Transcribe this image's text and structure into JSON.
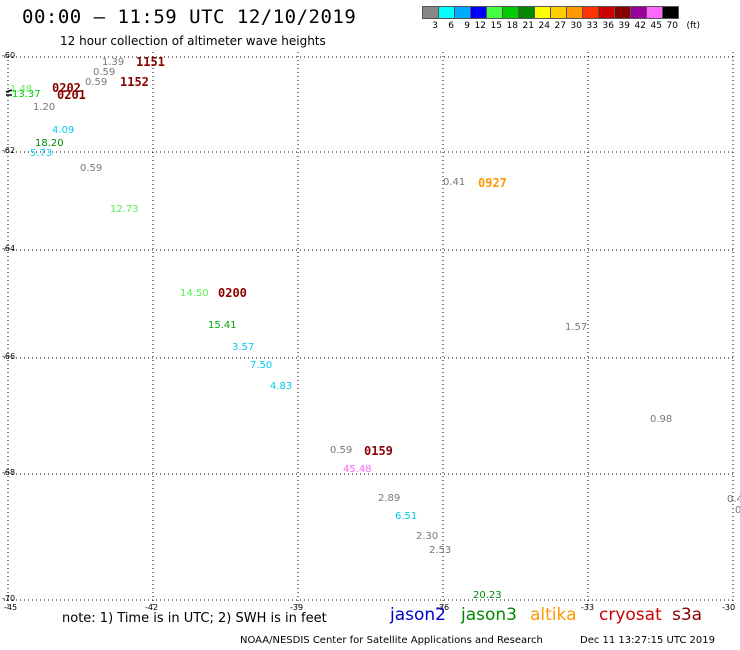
{
  "header": {
    "title": "00:00 – 11:59 UTC 12/10/2019",
    "subtitle": "12 hour collection of altimeter wave heights"
  },
  "color_scale": {
    "labels": [
      "3",
      "6",
      "9",
      "12",
      "15",
      "18",
      "21",
      "24",
      "27",
      "30",
      "33",
      "36",
      "39",
      "42",
      "45",
      "70"
    ],
    "unit": "(ft)",
    "colors": [
      "#888888",
      "#00ffff",
      "#00aaff",
      "#0000ff",
      "#44ff44",
      "#00cc00",
      "#008800",
      "#ffff00",
      "#ffcc00",
      "#ff9900",
      "#ff3300",
      "#cc0000",
      "#880000",
      "#990099",
      "#ff66ff",
      "#000000"
    ]
  },
  "map": {
    "x_ticks": [
      "-45",
      "-42",
      "-39",
      "-36",
      "-33",
      "-30"
    ],
    "y_ticks": [
      "-60",
      "-62",
      "-64",
      "-66",
      "-68",
      "-70"
    ],
    "wave_heights": [
      {
        "text": "1.39",
        "color": "#777777"
      },
      {
        "text": "0.59",
        "color": "#777777"
      },
      {
        "text": "0.59",
        "color": "#777777"
      },
      {
        "text": "1.48",
        "color": "#66ee66"
      },
      {
        "text": "13.37",
        "color": "#00cc00"
      },
      {
        "text": "1.20",
        "color": "#777777"
      },
      {
        "text": "4.09",
        "color": "#00ccee"
      },
      {
        "text": "18.20",
        "color": "#008800"
      },
      {
        "text": "5.73",
        "color": "#00ccee"
      },
      {
        "text": "0.59",
        "color": "#777777"
      },
      {
        "text": "12.73",
        "color": "#55ee55"
      },
      {
        "text": "14.50",
        "color": "#55ee55"
      },
      {
        "text": "15.41",
        "color": "#00aa00"
      },
      {
        "text": "3.57",
        "color": "#00ccee"
      },
      {
        "text": "7.50",
        "color": "#00ccee"
      },
      {
        "text": "4.83",
        "color": "#00ccee"
      },
      {
        "text": "0.41",
        "color": "#777777"
      },
      {
        "text": "1.57",
        "color": "#777777"
      },
      {
        "text": "0.98",
        "color": "#777777"
      },
      {
        "text": "0.59",
        "color": "#777777"
      },
      {
        "text": "45.48",
        "color": "#ff66ff"
      },
      {
        "text": "2.89",
        "color": "#777777"
      },
      {
        "text": "6.51",
        "color": "#00ccee"
      },
      {
        "text": "2.30",
        "color": "#777777"
      },
      {
        "text": "2.53",
        "color": "#777777"
      },
      {
        "text": "20.23",
        "color": "#008800"
      },
      {
        "text": "0.4",
        "color": "#777777"
      },
      {
        "text": "0",
        "color": "#777777"
      }
    ],
    "pass_times": [
      {
        "text": "1151",
        "color": "#880000"
      },
      {
        "text": "1152",
        "color": "#880000"
      },
      {
        "text": "0202",
        "color": "#880000"
      },
      {
        "text": "0201",
        "color": "#880000"
      },
      {
        "text": "0927",
        "color": "#ff9900"
      },
      {
        "text": "0200",
        "color": "#880000"
      },
      {
        "text": "0159",
        "color": "#880000"
      }
    ]
  },
  "legend": {
    "note": "note: 1) Time is in UTC; 2) SWH is in feet",
    "satellites": [
      {
        "name": "jason2",
        "color": "#0000cc"
      },
      {
        "name": "jason3",
        "color": "#008800"
      },
      {
        "name": "altika",
        "color": "#ff9900"
      },
      {
        "name": "cryosat",
        "color": "#cc0000"
      },
      {
        "name": "s3a",
        "color": "#880000"
      }
    ]
  },
  "footer": {
    "credit": "NOAA/NESDIS Center for Satellite Applications and Research",
    "timestamp": "Dec 11 13:27:15 UTC 2019"
  }
}
